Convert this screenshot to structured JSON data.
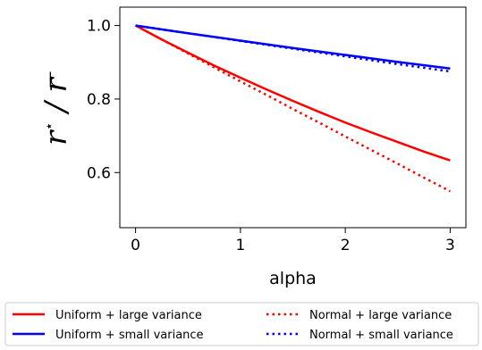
{
  "chart_data": {
    "type": "line",
    "xlabel": "alpha",
    "ylabel": {
      "r1": "r",
      "star": "⋆",
      "sep": " / ",
      "r2": "r",
      "bar": "_"
    },
    "xlim": [
      -0.15,
      3.15
    ],
    "ylim": [
      0.45,
      1.05
    ],
    "xticks": [
      {
        "value": 0,
        "label": "0"
      },
      {
        "value": 1,
        "label": "1"
      },
      {
        "value": 2,
        "label": "2"
      },
      {
        "value": 3,
        "label": "3"
      }
    ],
    "yticks": [
      {
        "value": 0.6,
        "label": "0.6"
      },
      {
        "value": 0.8,
        "label": "0.8"
      },
      {
        "value": 1.0,
        "label": "1.0"
      }
    ],
    "grid": false,
    "legend_position": "below",
    "series": [
      {
        "name": "Uniform + large variance",
        "color": "#ff0000",
        "style": "solid",
        "x": [
          0,
          0.25,
          0.5,
          0.75,
          1.0,
          1.25,
          1.5,
          1.75,
          2.0,
          2.25,
          2.5,
          2.75,
          3.0
        ],
        "y": [
          1.0,
          0.962,
          0.926,
          0.891,
          0.858,
          0.826,
          0.795,
          0.765,
          0.736,
          0.709,
          0.683,
          0.657,
          0.633
        ]
      },
      {
        "name": "Uniform + small variance",
        "color": "#0000ff",
        "style": "solid",
        "x": [
          0,
          0.5,
          1.0,
          1.5,
          2.0,
          2.5,
          3.0
        ],
        "y": [
          1.0,
          0.979,
          0.959,
          0.939,
          0.92,
          0.901,
          0.883
        ]
      },
      {
        "name": "Normal + large variance",
        "color": "#ff0000",
        "style": "dotted",
        "x": [
          0,
          0.25,
          0.5,
          0.75,
          1.0,
          1.25,
          1.5,
          1.75,
          2.0,
          2.25,
          2.5,
          2.75,
          3.0
        ],
        "y": [
          1.0,
          0.962,
          0.924,
          0.886,
          0.848,
          0.811,
          0.773,
          0.736,
          0.698,
          0.661,
          0.624,
          0.586,
          0.549
        ]
      },
      {
        "name": "Normal + small variance",
        "color": "#0000ff",
        "style": "dotted",
        "x": [
          0,
          0.5,
          1.0,
          1.5,
          2.0,
          2.5,
          3.0
        ],
        "y": [
          1.0,
          0.979,
          0.958,
          0.937,
          0.916,
          0.895,
          0.875
        ]
      }
    ]
  }
}
